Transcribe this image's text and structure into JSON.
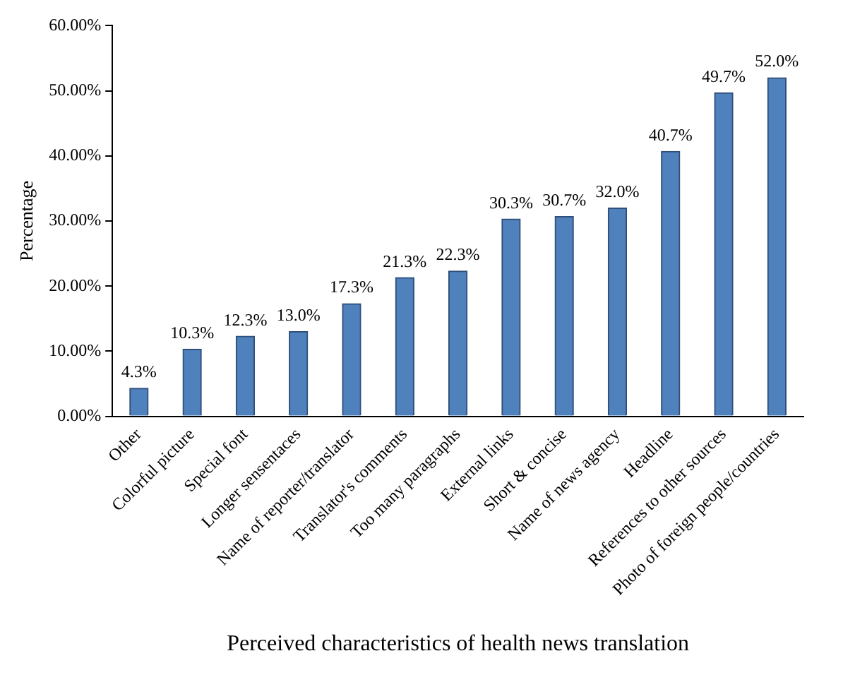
{
  "chart_data": {
    "type": "bar",
    "xlabel": "Perceived characteristics of health news translation",
    "ylabel": "Percentage",
    "categories": [
      "Other",
      "Colorful picture",
      "Special font",
      "Longer sensentaces",
      "Name of reporter/translator",
      "Translator's comments",
      "Too many paragraphs",
      "External links",
      "Short & concise",
      "Name of news agency",
      "Headline",
      "References to other sources",
      "Photo of foreign people/countries"
    ],
    "values": [
      4.3,
      10.3,
      12.3,
      13.0,
      17.3,
      21.3,
      22.3,
      30.3,
      30.7,
      32.0,
      40.7,
      49.7,
      52.0
    ],
    "value_labels": [
      "4.3%",
      "10.3%",
      "12.3%",
      "13.0%",
      "17.3%",
      "21.3%",
      "22.3%",
      "30.3%",
      "30.7%",
      "32.0%",
      "40.7%",
      "49.7%",
      "52.0%"
    ],
    "color": "#4f81bd",
    "ylim": [
      0,
      60
    ],
    "yticks": [
      {
        "value": 0,
        "label": "0.00%"
      },
      {
        "value": 10,
        "label": "10.00%"
      },
      {
        "value": 20,
        "label": "20.00%"
      },
      {
        "value": 30,
        "label": "30.00%"
      },
      {
        "value": 40,
        "label": "40.00%"
      },
      {
        "value": 50,
        "label": "50.00%"
      },
      {
        "value": 60,
        "label": "60.00%"
      }
    ],
    "grid": false,
    "legend": false
  }
}
